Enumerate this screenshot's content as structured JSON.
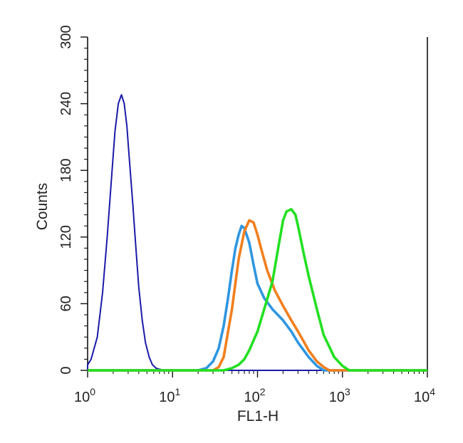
{
  "chart_data": {
    "type": "line",
    "title": "",
    "xlabel": "FL1-H",
    "ylabel": "Counts",
    "x_scale": "log",
    "xlim": [
      1,
      10000
    ],
    "ylim": [
      0,
      300
    ],
    "x_ticks": [
      {
        "base": "10",
        "exp": "0",
        "value": 1
      },
      {
        "base": "10",
        "exp": "1",
        "value": 10
      },
      {
        "base": "10",
        "exp": "2",
        "value": 100
      },
      {
        "base": "10",
        "exp": "3",
        "value": 1000
      },
      {
        "base": "10",
        "exp": "4",
        "value": 10000
      }
    ],
    "y_ticks": [
      "0",
      "60",
      "120",
      "180",
      "240",
      "300"
    ],
    "grid": false,
    "legend": "none",
    "series": [
      {
        "color": "#1a1aa8",
        "x": [
          1.0,
          1.1,
          1.3,
          1.5,
          1.7,
          1.9,
          2.1,
          2.3,
          2.5,
          2.7,
          2.9,
          3.1,
          3.4,
          3.7,
          4.0,
          4.4,
          4.8,
          5.3,
          5.8,
          6.4,
          7.0,
          8.0
        ],
        "y": [
          5,
          10,
          30,
          70,
          120,
          170,
          215,
          240,
          248,
          240,
          220,
          190,
          150,
          110,
          75,
          45,
          25,
          12,
          5,
          2,
          1,
          0
        ]
      },
      {
        "color": "#2f96e0",
        "x": [
          20,
          25,
          30,
          35,
          40,
          45,
          50,
          55,
          60,
          65,
          70,
          80,
          90,
          100,
          120,
          150,
          200,
          250,
          300,
          400,
          500,
          600
        ],
        "y": [
          0,
          2,
          8,
          20,
          40,
          65,
          90,
          110,
          122,
          130,
          128,
          115,
          95,
          78,
          65,
          55,
          45,
          35,
          25,
          12,
          4,
          0
        ]
      },
      {
        "color": "#f07f1e",
        "x": [
          30,
          35,
          40,
          50,
          60,
          70,
          80,
          90,
          100,
          110,
          130,
          160,
          200,
          250,
          300,
          400,
          500,
          600,
          700
        ],
        "y": [
          0,
          3,
          12,
          55,
          100,
          125,
          135,
          133,
          122,
          110,
          90,
          72,
          58,
          45,
          35,
          18,
          8,
          3,
          0
        ]
      },
      {
        "color": "#22e022",
        "x": [
          40,
          50,
          60,
          70,
          80,
          100,
          120,
          150,
          180,
          200,
          220,
          250,
          280,
          300,
          350,
          400,
          500,
          600,
          800,
          1000,
          1200
        ],
        "y": [
          0,
          2,
          5,
          10,
          18,
          35,
          55,
          80,
          115,
          135,
          143,
          145,
          140,
          130,
          105,
          85,
          55,
          32,
          12,
          4,
          0
        ]
      }
    ]
  }
}
